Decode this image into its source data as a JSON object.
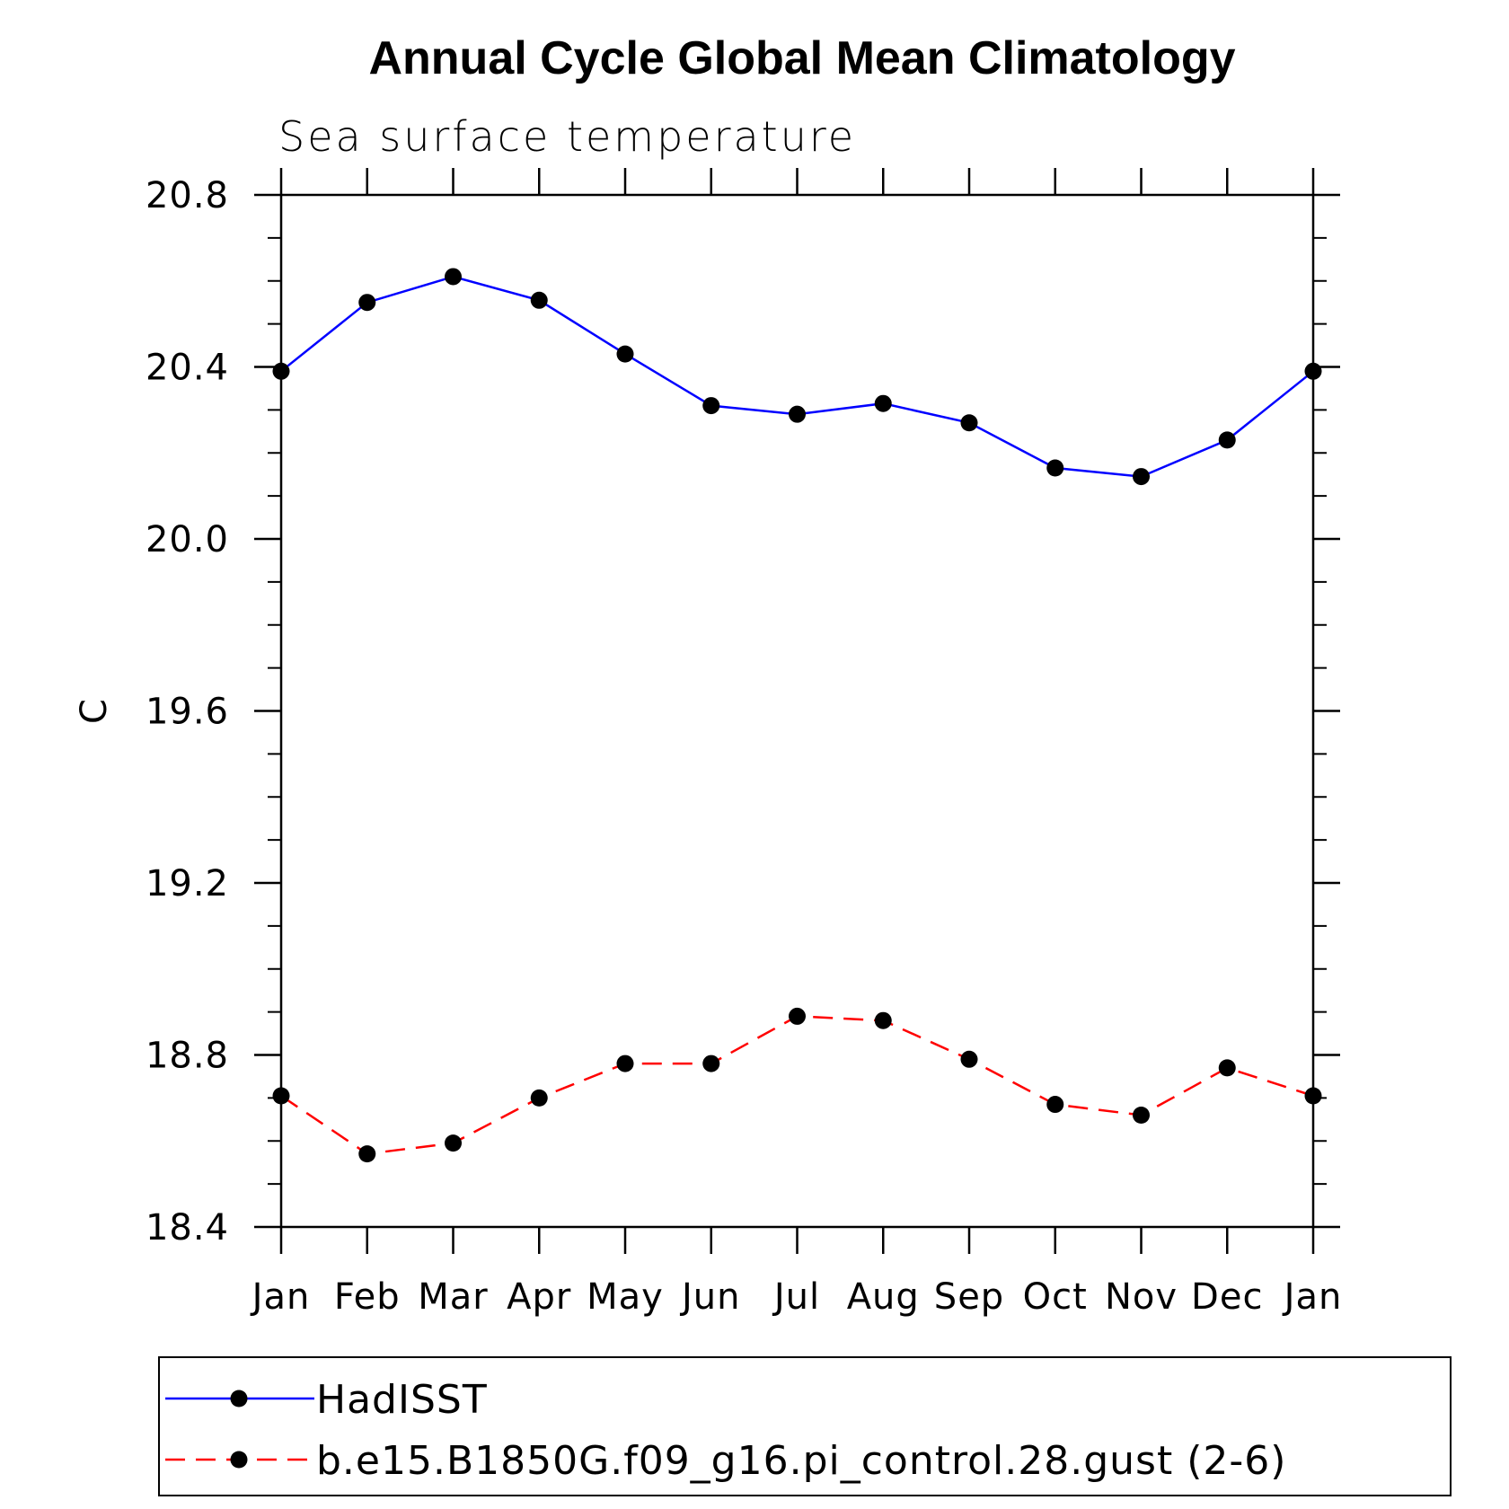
{
  "chart_data": {
    "type": "line",
    "title": "Annual Cycle Global Mean Climatology",
    "subtitle": "Sea surface temperature",
    "xlabel": "",
    "ylabel": "C",
    "categories": [
      "Jan",
      "Feb",
      "Mar",
      "Apr",
      "May",
      "Jun",
      "Jul",
      "Aug",
      "Sep",
      "Oct",
      "Nov",
      "Dec",
      "Jan"
    ],
    "ylim": [
      18.4,
      20.8
    ],
    "yticks": [
      "20.8",
      "20.4",
      "20.0",
      "19.6",
      "19.2",
      "18.8",
      "18.4"
    ],
    "ytick_values": [
      20.8,
      20.4,
      20.0,
      19.6,
      19.2,
      18.8,
      18.4
    ],
    "grid": false,
    "legend_position": "bottom",
    "series": [
      {
        "name": "HadISST",
        "color": "#0000ff",
        "dash": "solid",
        "marker": "filled-circle",
        "values": [
          20.39,
          20.55,
          20.61,
          20.555,
          20.43,
          20.31,
          20.29,
          20.315,
          20.27,
          20.165,
          20.145,
          20.23,
          20.39
        ]
      },
      {
        "name": "b.e15.B1850G.f09_g16.pi_control.28.gust (2-6)",
        "color": "#ff0000",
        "dash": "dashed",
        "marker": "filled-circle",
        "values": [
          18.705,
          18.57,
          18.595,
          18.7,
          18.78,
          18.78,
          18.89,
          18.88,
          18.79,
          18.685,
          18.66,
          18.77,
          18.705
        ]
      }
    ]
  }
}
